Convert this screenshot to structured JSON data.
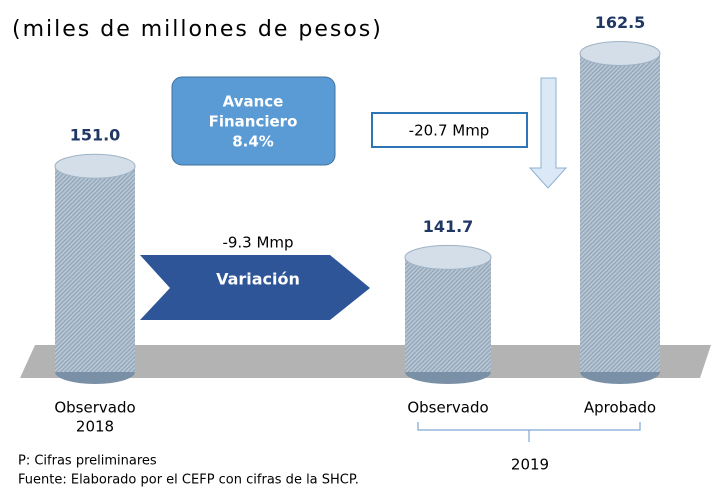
{
  "chart_data": {
    "type": "bar",
    "subtitle": "(miles de millones de pesos)",
    "categories": [
      [
        "Observado",
        "2018"
      ],
      [
        "Observado"
      ],
      [
        "Aprobado"
      ]
    ],
    "group_label": "2019",
    "values": [
      151.0,
      141.7,
      162.5
    ],
    "value_labels": [
      "151.0",
      "141.7",
      "162.5"
    ],
    "color": "#a9bccd",
    "ylim": [
      130,
      170
    ],
    "annotations": {
      "avance": [
        "Avance",
        "Financiero",
        "8.4%"
      ],
      "diff_aprobado": "-20.7 Mmp",
      "diff_2018": "-9.3 Mmp",
      "variacion": "Variación"
    },
    "notes": [
      "P: Cifras preliminares",
      "Fuente: Elaborado por el CEFP con cifras de la SHCP."
    ]
  }
}
